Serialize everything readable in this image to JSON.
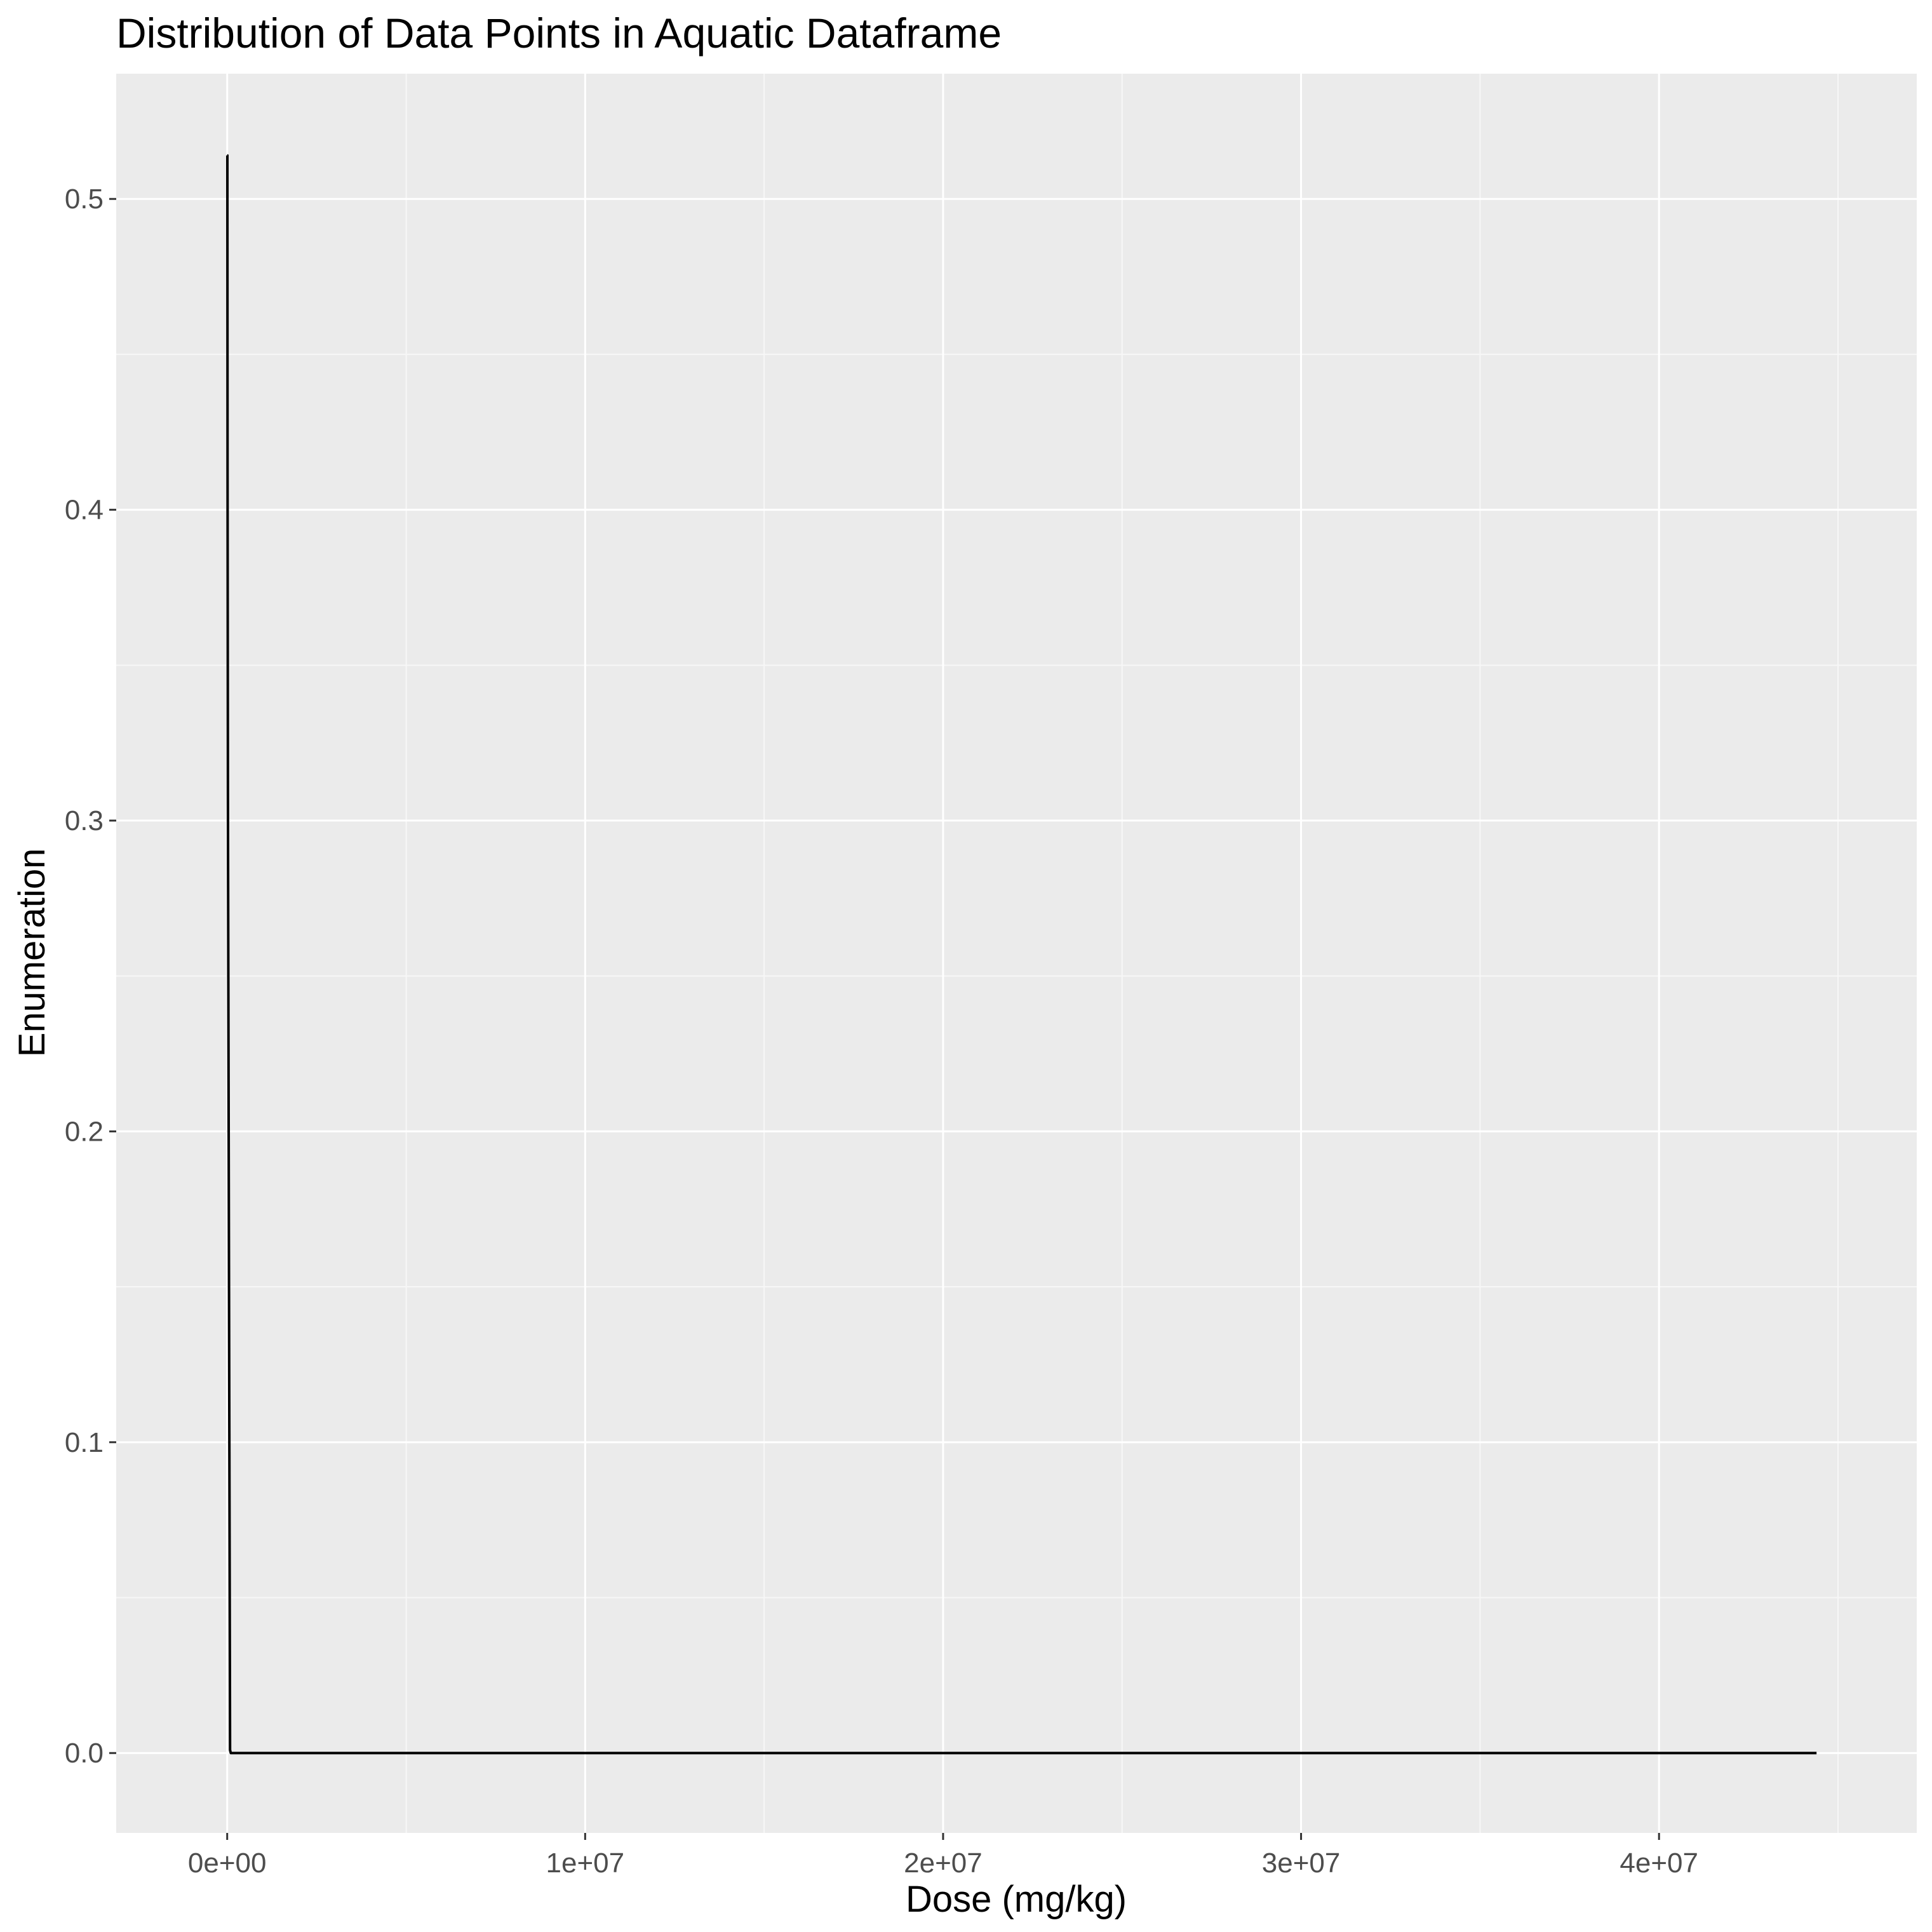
{
  "chart_data": {
    "type": "line",
    "title": "Distribution of Data Points in Aquatic Dataframe",
    "xlabel": "Dose (mg/kg)",
    "ylabel": "Enumeration",
    "xlim": [
      -3100000,
      47200000
    ],
    "ylim": [
      -0.0257,
      0.5403
    ],
    "x_ticks": [
      0,
      10000000,
      20000000,
      30000000,
      40000000
    ],
    "x_tick_labels": [
      "0e+00",
      "1e+07",
      "2e+07",
      "3e+07",
      "4e+07"
    ],
    "y_ticks": [
      0.0,
      0.1,
      0.2,
      0.3,
      0.4,
      0.5
    ],
    "y_tick_labels": [
      "0.0",
      "0.1",
      "0.2",
      "0.3",
      "0.4",
      "0.5"
    ],
    "x_minor_ticks": [
      5000000,
      15000000,
      25000000,
      35000000,
      45000000
    ],
    "y_minor_ticks": [
      0.05,
      0.15,
      0.25,
      0.35,
      0.45
    ],
    "grid": true,
    "legend": "none",
    "series": [
      {
        "values": [
          [
            0,
            0.514
          ],
          [
            5000,
            0.514
          ],
          [
            10000,
            0.411
          ],
          [
            20000,
            0.309
          ],
          [
            40000,
            0.206
          ],
          [
            60000,
            0.103
          ],
          [
            80000,
            0.001
          ],
          [
            100000,
            0.0
          ],
          [
            44400000,
            0.0
          ]
        ]
      }
    ],
    "colors": {
      "panel": "#ebebeb",
      "grid_major": "#ffffff",
      "grid_minor": "#f7f7f7",
      "line": "#000000",
      "tick_mark": "#333333",
      "tick_text": "#4d4d4d"
    }
  }
}
